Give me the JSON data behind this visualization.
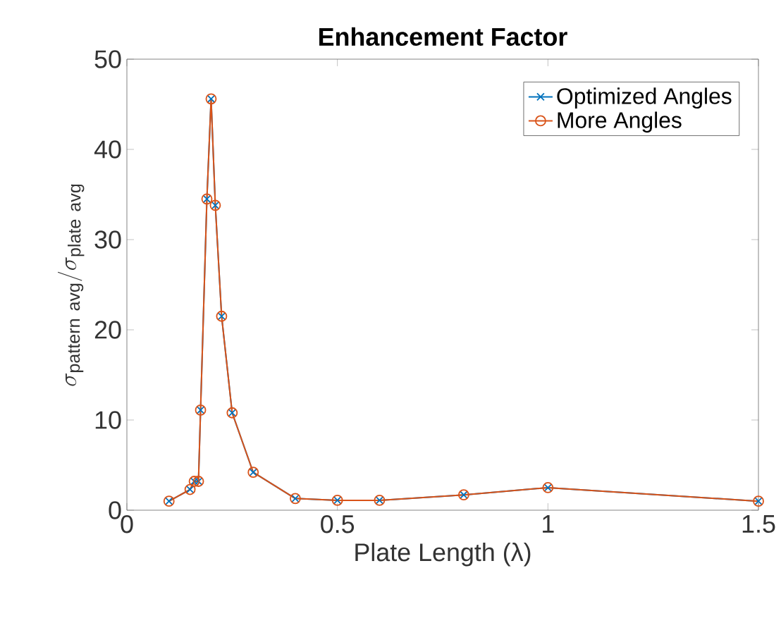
{
  "chart_data": {
    "type": "line",
    "title": "Enhancement Factor",
    "xlabel": "Plate Length (λ)",
    "ylabel": "\\sigma_{\\mathrm{pattern\\ avg}}/\\sigma_{\\mathrm{plate\\ avg}}",
    "x": [
      0.1,
      0.15,
      0.16,
      0.17,
      0.175,
      0.19,
      0.2,
      0.21,
      0.225,
      0.25,
      0.3,
      0.4,
      0.5,
      0.6,
      0.8,
      1.0,
      1.5
    ],
    "series": [
      {
        "name": "Optimized Angles",
        "color": "#0072bd",
        "marker": "cross",
        "values": [
          1.0,
          2.3,
          3.2,
          3.2,
          11.1,
          34.5,
          45.6,
          33.8,
          21.5,
          10.8,
          4.2,
          1.3,
          1.1,
          1.1,
          1.7,
          2.5,
          1.0
        ]
      },
      {
        "name": "More Angles",
        "color": "#d95319",
        "marker": "circle",
        "values": [
          1.0,
          2.3,
          3.2,
          3.2,
          11.1,
          34.5,
          45.6,
          33.8,
          21.5,
          10.8,
          4.2,
          1.3,
          1.1,
          1.1,
          1.7,
          2.5,
          1.0
        ]
      }
    ],
    "xlim": [
      0,
      1.5
    ],
    "xticks": [
      0,
      0.5,
      1,
      1.5
    ],
    "ylim": [
      0,
      50
    ],
    "yticks": [
      0,
      10,
      20,
      30,
      40,
      50
    ],
    "legend": "top right",
    "line_style": "solid"
  }
}
